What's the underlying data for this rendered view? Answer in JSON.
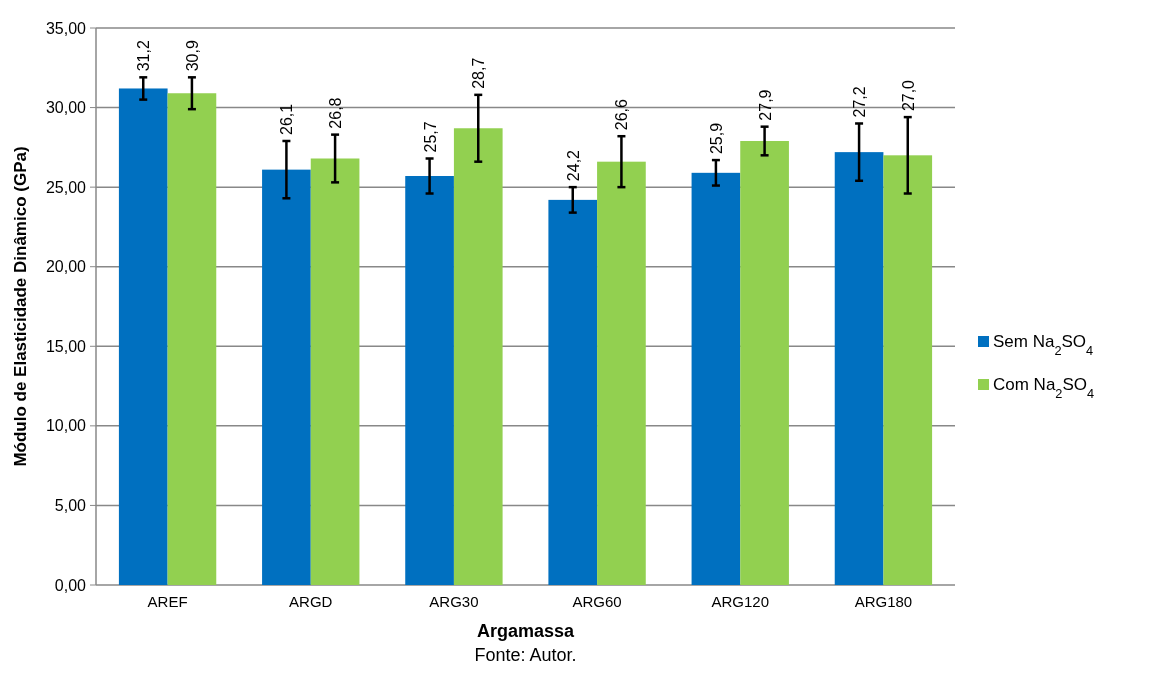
{
  "chart_data": {
    "type": "bar",
    "xlabel": "Argamassa",
    "ylabel": "Módulo de Elasticidade Dinâmico (GPa)",
    "categories": [
      "AREF",
      "ARGD",
      "ARG30",
      "ARG60",
      "ARG120",
      "ARG180"
    ],
    "series": [
      {
        "name": "Sem Na$_{2}$SO$_{4}$",
        "color": "#0070c0",
        "values": [
          31.2,
          26.1,
          25.7,
          24.2,
          25.9,
          27.2
        ],
        "value_labels": [
          "31,2",
          "26,1",
          "25,7",
          "24,2",
          "25,9",
          "27,2"
        ],
        "errors": [
          0.7,
          1.8,
          1.1,
          0.8,
          0.8,
          1.8
        ]
      },
      {
        "name": "Com Na$_{2}$SO$_{4}$",
        "color": "#92d050",
        "values": [
          30.9,
          26.8,
          28.7,
          26.6,
          27.9,
          27.0
        ],
        "value_labels": [
          "30,9",
          "26,8",
          "28,7",
          "26,6",
          "27,9",
          "27,0"
        ],
        "errors": [
          1.0,
          1.5,
          2.1,
          1.6,
          0.9,
          2.4
        ]
      }
    ],
    "ylim": [
      0,
      35
    ],
    "yticks": [
      {
        "value": 0,
        "label": "0,00"
      },
      {
        "value": 5,
        "label": "5,00"
      },
      {
        "value": 10,
        "label": "10,00"
      },
      {
        "value": 15,
        "label": "15,00"
      },
      {
        "value": 20,
        "label": "20,00"
      },
      {
        "value": 25,
        "label": "25,00"
      },
      {
        "value": 30,
        "label": "30,00"
      },
      {
        "value": 35,
        "label": "35,00"
      }
    ],
    "grid": "y",
    "legend": "right",
    "annotations": [
      "Fonte: Autor."
    ]
  }
}
